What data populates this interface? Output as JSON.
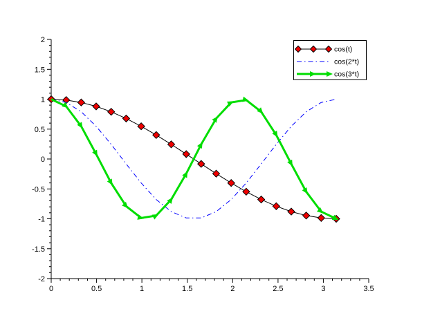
{
  "window": {
    "background": "#ffffff"
  },
  "chart_data": {
    "type": "line",
    "title": "",
    "xlabel": "",
    "ylabel": "",
    "xlim": [
      0,
      3.5
    ],
    "ylim": [
      -2,
      2
    ],
    "x_ticks": [
      0,
      0.5,
      1,
      1.5,
      2,
      2.5,
      3,
      3.5
    ],
    "y_ticks": [
      -2,
      -1.5,
      -1,
      -0.5,
      0,
      0.5,
      1,
      1.5,
      2
    ],
    "minor_tick_step": 0.1,
    "grid": false,
    "axis_color": "#000000",
    "tick_label_color": "#000000",
    "legend": {
      "position": "upper-right",
      "border_color": "#000000",
      "background": "#ffffff"
    },
    "x": [
      0,
      0.1653,
      0.3307,
      0.496,
      0.6614,
      0.8267,
      0.9921,
      1.1574,
      1.3228,
      1.4881,
      1.6535,
      1.8188,
      1.9842,
      2.1495,
      2.3149,
      2.4802,
      2.6456,
      2.8109,
      2.9762,
      3.1416
    ],
    "series": [
      {
        "name": "cos(t)",
        "line_color": "#000000",
        "line_style": "solid",
        "line_width": 1,
        "marker": "diamond",
        "marker_fill": "#ee0000",
        "marker_edge": "#000000",
        "values": [
          1,
          0.9864,
          0.9458,
          0.8795,
          0.7891,
          0.6773,
          0.547,
          0.4017,
          0.2455,
          0.0826,
          -0.0826,
          -0.2455,
          -0.4017,
          -0.547,
          -0.6773,
          -0.7891,
          -0.8795,
          -0.9458,
          -0.9864,
          -1
        ]
      },
      {
        "name": "cos(2*t)",
        "line_color": "#0000ff",
        "line_style": "dash-dot",
        "line_width": 1,
        "marker": "none",
        "values": [
          1,
          0.9458,
          0.7891,
          0.547,
          0.2455,
          -0.0826,
          -0.4017,
          -0.6773,
          -0.8795,
          -0.9864,
          -0.9864,
          -0.8795,
          -0.6773,
          -0.4017,
          -0.0826,
          0.2455,
          0.547,
          0.7891,
          0.9458,
          1
        ]
      },
      {
        "name": "cos(3*t)",
        "line_color": "#00dd00",
        "line_style": "solid",
        "line_width": 3,
        "marker": "arrow",
        "values": [
          1,
          0.8795,
          0.547,
          0.0826,
          -0.4017,
          -0.7891,
          -0.9864,
          -0.9458,
          -0.6773,
          -0.2455,
          0.2455,
          0.6773,
          0.9458,
          0.9864,
          0.7891,
          0.4017,
          -0.0826,
          -0.547,
          -0.8795,
          -1
        ]
      }
    ]
  }
}
